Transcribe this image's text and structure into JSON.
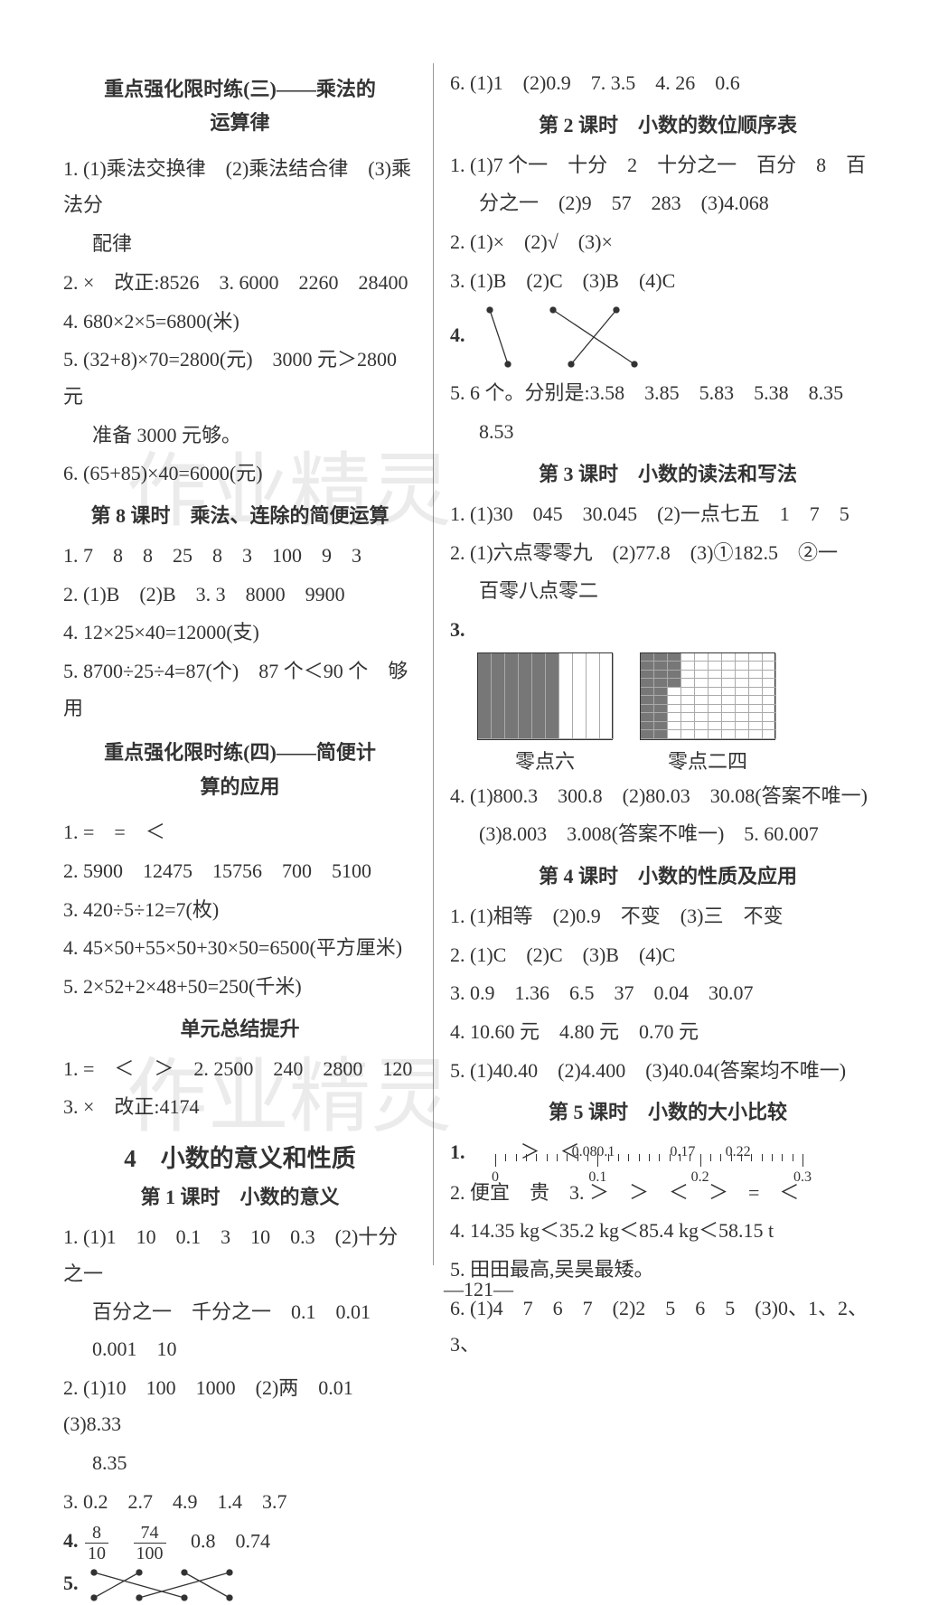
{
  "page_number": "—121—",
  "watermark_text": "作业精灵",
  "left": {
    "title_a": "重点强化限时练(三)——乘法的",
    "title_a2": "运算律",
    "a": [
      "1. (1)乘法交换律　(2)乘法结合律　(3)乘法分",
      "配律",
      "2. ×　改正:8526　3. 6000　2260　28400",
      "4. 680×2×5=6800(米)",
      "5. (32+8)×70=2800(元)　3000 元＞2800 元",
      "准备 3000 元够。",
      "6. (65+85)×40=6000(元)"
    ],
    "title_b": "第 8 课时　乘法、连除的简便运算",
    "b": [
      "1. 7　8　8　25　8　3　100　9　3",
      "2. (1)B　(2)B　3. 3　8000　9900",
      "4. 12×25×40=12000(支)",
      "5. 8700÷25÷4=87(个)　87 个＜90 个　够用"
    ],
    "title_c": "重点强化限时练(四)——简便计",
    "title_c2": "算的应用",
    "c": [
      "1. =　=　＜",
      "2. 5900　12475　15756　700　5100",
      "3. 420÷5÷12=7(枚)",
      "4. 45×50+55×50+30×50=6500(平方厘米)",
      "5. 2×52+2×48+50=250(千米)"
    ],
    "title_d": "单元总结提升",
    "d": [
      "1. =　＜　＞　2. 2500　240　2800　120",
      "3. ×　改正:4174"
    ],
    "unit_title": "4　小数的意义和性质",
    "title_e": "第 1 课时　小数的意义",
    "e": [
      "1. (1)1　10　0.1　3　10　0.3　(2)十分之一",
      "百分之一　千分之一　0.1　0.01　0.001　10",
      "2. (1)10　100　1000　(2)两　0.01　(3)8.33",
      "8.35",
      "3. 0.2　2.7　4.9　1.4　3.7"
    ],
    "frac_line_prefix": "4.",
    "frac1_n": "8",
    "frac1_d": "10",
    "frac2_n": "74",
    "frac2_d": "100",
    "frac_rest": "　0.8　0.74",
    "e5_label": "5."
  },
  "right": {
    "top": "6. (1)1　(2)0.9　7. 3.5　4. 26　0.6",
    "title_a": "第 2 课时　小数的数位顺序表",
    "a": [
      "1. (1)7 个一　十分　2　十分之一　百分　8　百",
      "分之一　(2)9　57　283　(3)4.068",
      "2. (1)×　(2)√　(3)×",
      "3. (1)B　(2)C　(3)B　(4)C"
    ],
    "a4_label": "4.",
    "a5": [
      "5. 6 个。分别是:3.58　3.85　5.83　5.38　8.35",
      "8.53"
    ],
    "title_b": "第 3 课时　小数的读法和写法",
    "b": [
      "1. (1)30　045　30.045　(2)一点七五　1　7　5",
      "2. (1)六点零零九　(2)77.8　(3)①182.5　②一",
      "百零八点零二"
    ],
    "b3_label": "3.",
    "grid_cap1": "零点六",
    "grid_cap2": "零点二四",
    "b4": [
      "4. (1)800.3　300.8　(2)80.03　30.08(答案不唯一)",
      "(3)8.003　3.008(答案不唯一)　5. 60.007"
    ],
    "title_c": "第 4 课时　小数的性质及应用",
    "c": [
      "1. (1)相等　(2)0.9　不变　(3)三　不变",
      "2. (1)C　(2)C　(3)B　(4)C",
      "3. 0.9　1.36　6.5　37　0.04　30.07",
      "4. 10.60 元　4.80 元　0.70 元",
      "5. (1)40.40　(2)4.400　(3)40.04(答案均不唯一)"
    ],
    "title_d": "第 5 课时　小数的大小比较",
    "d1_label": "1.",
    "nl": {
      "ticks": [
        "0",
        "0.1",
        "0.2",
        "0.3"
      ],
      "vals": [
        {
          "v": "0.08",
          "x": 29
        },
        {
          "v": "0.1",
          "x": 36
        },
        {
          "v": "0.17",
          "x": 61
        },
        {
          "v": "0.22",
          "x": 79
        }
      ]
    },
    "d1_tail": "　＞　＜",
    "d": [
      "2. 便宜　贵　3. ＞　＞　＜　＞　=　＜",
      "4. 14.35 kg＜35.2 kg＜85.4 kg＜58.15 t",
      "5. 田田最高,吴昊最矮。",
      "6. (1)4　7　6　7　(2)2　5　6　5　(3)0、1、2、3、"
    ]
  },
  "colors": {
    "text": "#333333",
    "border": "#999999",
    "fill": "#777777",
    "wm": "rgba(0,0,0,0.08)"
  }
}
